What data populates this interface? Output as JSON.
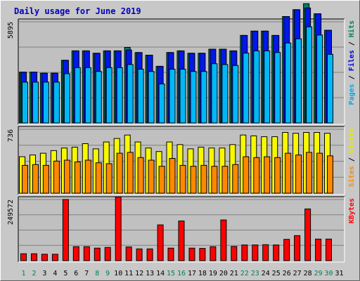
{
  "chart_data": {
    "type": "bar",
    "title": "Daily usage for June 2019",
    "categories": [
      "1",
      "2",
      "3",
      "4",
      "5",
      "6",
      "7",
      "8",
      "9",
      "10",
      "11",
      "12",
      "13",
      "14",
      "15",
      "16",
      "17",
      "18",
      "19",
      "20",
      "21",
      "22",
      "23",
      "24",
      "25",
      "26",
      "27",
      "28",
      "29",
      "30",
      "31"
    ],
    "weekend_days": [
      "1",
      "2",
      "8",
      "9",
      "15",
      "16",
      "22",
      "23",
      "29",
      "30"
    ],
    "panels": [
      {
        "id": "hits-files-pages",
        "ytick": "5895",
        "ymax": 5895,
        "side_labels": [
          {
            "text": "Pages",
            "color": "#00a8e8"
          },
          {
            "text": " / ",
            "color": "#000000"
          },
          {
            "text": "Files",
            "color": "#0000e0"
          },
          {
            "text": " / ",
            "color": "#000000"
          },
          {
            "text": "Hits",
            "color": "#00805c"
          }
        ],
        "series": [
          {
            "name": "Hits",
            "color": "#008060",
            "values": [
              2960,
              2960,
              2900,
              2900,
              3650,
              4200,
              4200,
              4060,
              4200,
              4200,
              4400,
              4100,
              3950,
              3300,
              4100,
              4200,
              4060,
              4060,
              4300,
              4300,
              4200,
              5100,
              5350,
              5350,
              5100,
              6200,
              6600,
              6950,
              6360,
              5400,
              null
            ]
          },
          {
            "name": "Files",
            "color": "#0018e8",
            "values": [
              2960,
              2960,
              2900,
              2900,
              3650,
              4200,
              4200,
              4060,
              4200,
              4200,
              4250,
              4100,
              3950,
              3300,
              4100,
              4200,
              4060,
              4060,
              4300,
              4300,
              4200,
              5100,
              5350,
              5350,
              5100,
              6200,
              6600,
              6700,
              6360,
              5400,
              null
            ]
          },
          {
            "name": "Pages",
            "color": "#00b8f8",
            "values": [
              2380,
              2380,
              2380,
              2380,
              2870,
              3220,
              3220,
              3000,
              3220,
              3220,
              3400,
              3130,
              3000,
              2270,
              3130,
              3130,
              3000,
              3000,
              3450,
              3400,
              3350,
              4070,
              4200,
              4200,
              4100,
              4660,
              4900,
              5600,
              5120,
              4000,
              null
            ]
          }
        ]
      },
      {
        "id": "visits-sites",
        "ytick": "736",
        "ymax": 736,
        "side_labels": [
          {
            "text": "Sites",
            "color": "#ff8800"
          },
          {
            "text": " / ",
            "color": "#000000"
          },
          {
            "text": "Visits",
            "color": "#e8e800"
          }
        ],
        "series": [
          {
            "name": "Visits",
            "color": "#f8f800",
            "values": [
              420,
              440,
              460,
              490,
              520,
              530,
              570,
              510,
              590,
              630,
              670,
              590,
              520,
              480,
              590,
              560,
              510,
              530,
              520,
              520,
              560,
              670,
              660,
              650,
              650,
              700,
              690,
              700,
              700,
              690,
              null
            ]
          },
          {
            "name": "Sites",
            "color": "#ff8800",
            "values": [
              320,
              330,
              320,
              370,
              380,
              360,
              380,
              350,
              340,
              460,
              470,
              410,
              380,
              310,
              400,
              320,
              310,
              320,
              310,
              310,
              330,
              420,
              410,
              420,
              410,
              460,
              440,
              470,
              460,
              430,
              null
            ]
          }
        ]
      },
      {
        "id": "kbytes",
        "ytick": "249572",
        "ymax": 249572,
        "side_labels": [
          {
            "text": "KBytes",
            "color": "#ff0000"
          }
        ],
        "series": [
          {
            "name": "KBytes",
            "color": "#ff0000",
            "values": [
              28000,
              28000,
              26000,
              26000,
              249572,
              57000,
              57000,
              51000,
              54000,
              260000,
              56000,
              48000,
              48000,
              146000,
              51000,
              162000,
              51000,
              50000,
              57000,
              166000,
              58000,
              64000,
              64000,
              65000,
              64000,
              87000,
              102000,
              211000,
              88000,
              88000,
              null
            ]
          }
        ]
      }
    ]
  }
}
